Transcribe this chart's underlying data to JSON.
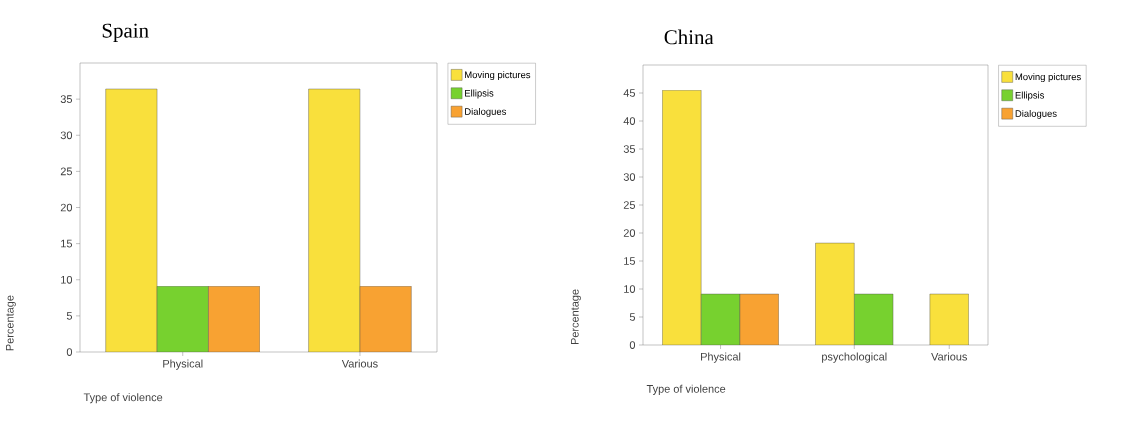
{
  "chart_data": [
    {
      "type": "bar",
      "title": "Spain",
      "xlabel": "Type of violence",
      "ylabel": "Percentage",
      "categories": [
        "Physical",
        "Various"
      ],
      "series": [
        {
          "name": "Moving pictures",
          "color": "#f9e03c",
          "values": [
            36.4,
            36.4
          ]
        },
        {
          "name": "Ellipsis",
          "color": "#77d12f",
          "values": [
            9.1,
            null
          ]
        },
        {
          "name": "Dialogues",
          "color": "#f8a232",
          "values": [
            9.1,
            9.1
          ]
        }
      ],
      "ylim": [
        0,
        40
      ],
      "yticks": [
        0,
        5,
        10,
        15,
        20,
        25,
        30,
        35
      ],
      "grid": false,
      "legend": "top right"
    },
    {
      "type": "bar",
      "title": "China",
      "xlabel": "Type of violence",
      "ylabel": "Percentage",
      "categories": [
        "Physical",
        "psychological",
        "Various"
      ],
      "series": [
        {
          "name": "Moving pictures",
          "color": "#f9e03c",
          "values": [
            45.5,
            18.2,
            9.1
          ]
        },
        {
          "name": "Ellipsis",
          "color": "#77d12f",
          "values": [
            9.1,
            9.1,
            null
          ]
        },
        {
          "name": "Dialogues",
          "color": "#f8a232",
          "values": [
            9.1,
            null,
            null
          ]
        }
      ],
      "ylim": [
        0,
        50
      ],
      "yticks": [
        0,
        5,
        10,
        15,
        20,
        25,
        30,
        35,
        40,
        45
      ],
      "grid": false,
      "legend": "top right"
    }
  ]
}
